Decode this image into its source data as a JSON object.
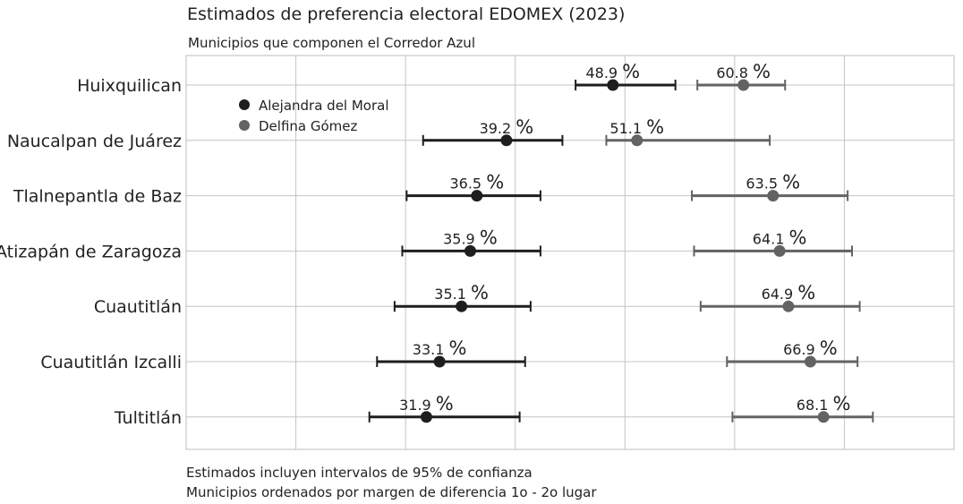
{
  "chart_data": {
    "type": "dot-interval",
    "title": "Estimados de preferencia electoral EDOMEX (2023)",
    "subtitle": "Municipios que componen el Corredor Azul",
    "caption": [
      "Estimados incluyen intervalos de 95% de confianza",
      "Municipios ordenados por margen de diferencia 1o - 2o lugar"
    ],
    "xlim": [
      10,
      80
    ],
    "grid": true,
    "legend_position": "top-left",
    "categories": [
      "Huixquilican",
      "Naucalpan de Juárez",
      "Tlalnepantla de Baz",
      "Atizapán de Zaragoza",
      "Cuautitlán",
      "Cuautitlán Izcalli",
      "Tultitlán"
    ],
    "series": [
      {
        "name": "Alejandra del Moral",
        "color": "#1e1e1e",
        "values": [
          48.9,
          39.2,
          36.5,
          35.9,
          35.1,
          33.1,
          31.9
        ],
        "lower": [
          45.5,
          31.6,
          30.1,
          29.7,
          29.0,
          27.4,
          26.7
        ],
        "upper": [
          54.6,
          44.3,
          42.3,
          42.3,
          41.4,
          40.9,
          40.4
        ],
        "labels": [
          "48.9",
          "39.2",
          "36.5",
          "35.9",
          "35.1",
          "33.1",
          "31.9"
        ]
      },
      {
        "name": "Delfina Gómez",
        "color": "#636363",
        "values": [
          60.8,
          51.1,
          63.5,
          64.1,
          64.9,
          66.9,
          68.1
        ],
        "lower": [
          56.6,
          48.3,
          56.1,
          56.3,
          56.9,
          59.3,
          59.8
        ],
        "upper": [
          64.6,
          63.2,
          70.3,
          70.7,
          71.4,
          71.2,
          72.6
        ],
        "labels": [
          "60.8",
          "51.1",
          "63.5",
          "64.1",
          "64.9",
          "66.9",
          "68.1"
        ]
      }
    ],
    "percent_sign": "%"
  }
}
